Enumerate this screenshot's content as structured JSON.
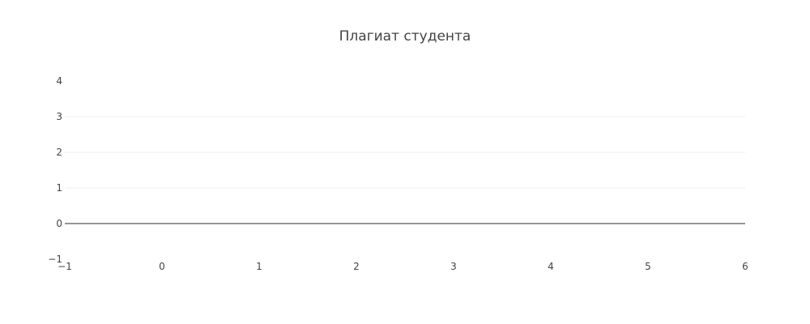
{
  "chart_data": {
    "type": "line",
    "title": "Плагиат студента",
    "xlabel": "",
    "ylabel": "",
    "xlim": [
      -1,
      6
    ],
    "ylim": [
      -1,
      4
    ],
    "x_ticks": [
      -1,
      0,
      1,
      2,
      3,
      4,
      5,
      6
    ],
    "y_ticks": [
      -1,
      0,
      1,
      2,
      3,
      4
    ],
    "x_tick_labels": [
      "−1",
      "0",
      "1",
      "2",
      "3",
      "4",
      "5",
      "6"
    ],
    "y_tick_labels": [
      "−1",
      "0",
      "1",
      "2",
      "3",
      "4"
    ],
    "grid": true,
    "zero_line": true,
    "series": [],
    "colors": {
      "grid": "#eeeeee",
      "zero_line": "#444444",
      "text": "#444444"
    }
  }
}
